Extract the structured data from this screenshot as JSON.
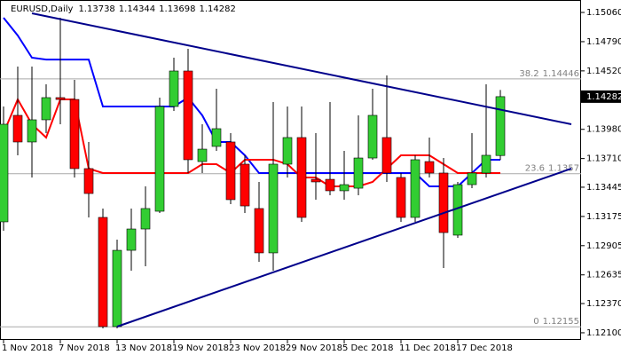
{
  "chart_data": {
    "type": "candlestick",
    "title": "EURUSD,Daily",
    "categories": [
      "1 Nov 2018",
      null,
      null,
      null,
      "7 Nov 2018",
      null,
      null,
      null,
      "13 Nov 2018",
      null,
      null,
      null,
      "19 Nov 2018",
      null,
      null,
      null,
      "23 Nov 2018",
      null,
      null,
      null,
      "29 Nov 2018",
      null,
      null,
      null,
      "5 Dec 2018",
      null,
      null,
      null,
      "11 Dec 2018",
      null,
      null,
      null,
      "17 Dec 2018",
      null,
      null,
      null
    ],
    "open": [
      1.13125,
      1.14109,
      1.13863,
      1.14068,
      1.14273,
      1.14256,
      1.13617,
      1.13166,
      1.12157,
      1.12862,
      1.13059,
      1.13223,
      1.14191,
      1.14519,
      1.13682,
      1.13822,
      1.13863,
      1.13658,
      1.13248,
      1.12838,
      1.13658,
      1.13904,
      1.13518,
      1.13518,
      1.13412,
      1.13436,
      1.13715,
      1.13904,
      1.13535,
      1.13166,
      1.13682,
      1.13576,
      1.13002,
      1.13469,
      1.13576,
      1.13738
    ],
    "high": [
      1.14191,
      1.1456,
      1.1456,
      1.14396,
      1.15011,
      1.14437,
      1.13863,
      1.13248,
      1.12961,
      1.13248,
      1.13453,
      1.14273,
      1.14642,
      1.14724,
      1.14027,
      1.14355,
      1.13945,
      1.1374,
      1.13494,
      1.14232,
      1.14191,
      1.14191,
      1.13945,
      1.14232,
      1.13781,
      1.14109,
      1.14355,
      1.14478,
      1.13576,
      1.1374,
      1.13904,
      1.13715,
      1.13494,
      1.13945,
      1.14396,
      1.14344
    ],
    "low": [
      1.13043,
      1.1374,
      1.13535,
      1.13945,
      1.14027,
      1.13535,
      1.13166,
      1.12141,
      1.12141,
      1.12674,
      1.12715,
      1.13207,
      1.1415,
      1.13576,
      1.13576,
      1.13781,
      1.13289,
      1.13207,
      1.12756,
      1.12674,
      1.13535,
      1.13125,
      1.1333,
      1.13371,
      1.1333,
      1.13371,
      1.13699,
      1.13494,
      1.13125,
      1.13125,
      1.13535,
      1.12698,
      1.12977,
      1.13436,
      1.13535,
      1.13698
    ],
    "close": [
      1.14027,
      1.13863,
      1.14068,
      1.14273,
      1.14256,
      1.13617,
      1.13387,
      1.12157,
      1.12862,
      1.13059,
      1.13248,
      1.14191,
      1.14519,
      1.13699,
      1.13797,
      1.13986,
      1.1333,
      1.13272,
      1.12838,
      1.13658,
      1.13904,
      1.13166,
      1.13494,
      1.13412,
      1.13469,
      1.13715,
      1.14109,
      1.13576,
      1.13166,
      1.13699,
      1.13576,
      1.13026,
      1.13469,
      1.13576,
      1.1374,
      1.14282
    ],
    "up_color": "#32cd32",
    "down_color": "#ff0000",
    "indicators": [
      {
        "color": "#0000ff",
        "values": [
          1.15011,
          1.14847,
          1.14642,
          1.14625,
          1.14625,
          1.14625,
          1.14625,
          1.14191,
          1.14191,
          1.14191,
          1.14191,
          1.14191,
          1.14191,
          1.14273,
          1.14109,
          1.13863,
          1.13863,
          1.1374,
          1.13576,
          1.13576,
          1.13576,
          1.13576,
          1.13576,
          1.13576,
          1.13576,
          1.13576,
          1.13576,
          1.13576,
          1.13576,
          1.13576,
          1.13453,
          1.13453,
          1.13453,
          1.13576,
          1.13699,
          1.13699
        ]
      },
      {
        "color": "#ff0000",
        "values": [
          1.13945,
          1.14256,
          1.14027,
          1.13904,
          1.14256,
          1.14256,
          1.13617,
          1.13576,
          1.13576,
          1.13576,
          1.13576,
          1.13576,
          1.13576,
          1.13576,
          1.13658,
          1.13658,
          1.13576,
          1.13699,
          1.13699,
          1.13699,
          1.13658,
          1.13535,
          1.13535,
          1.13453,
          1.13453,
          1.13453,
          1.13494,
          1.13617,
          1.1374,
          1.1374,
          1.1374,
          1.13658,
          1.13576,
          1.13576,
          1.13576,
          1.13576
        ]
      }
    ],
    "trendlines": [
      {
        "color": "#00008b",
        "x": [
          2,
          40
        ],
        "y": [
          1.15052,
          1.14027
        ]
      },
      {
        "color": "#00008b",
        "x": [
          8,
          40
        ],
        "y": [
          1.12157,
          1.13617
        ]
      }
    ],
    "fib_levels": [
      {
        "level": 38.2,
        "price": 1.14446
      },
      {
        "level": 23.6,
        "price": 1.1357
      },
      {
        "level": 0.0,
        "price": 1.12155
      }
    ],
    "ylim": [
      1.12034,
      1.15175
    ],
    "yticks": [
      {
        "value": 1.1506,
        "label": "1.15060"
      },
      {
        "value": 1.1479,
        "label": "1.14790"
      },
      {
        "value": 1.1452,
        "label": "1.14520"
      },
      {
        "value": 1.1398,
        "label": "1.13980"
      },
      {
        "value": 1.1371,
        "label": "1.13710"
      },
      1.13445,
      1.13175,
      {
        "value": 1.12905,
        "label": "1.12905"
      },
      1.12635,
      {
        "value": 1.1237,
        "label": "1.12370"
      },
      {
        "value": 1.121,
        "label": "1.12100"
      }
    ]
  }
}
